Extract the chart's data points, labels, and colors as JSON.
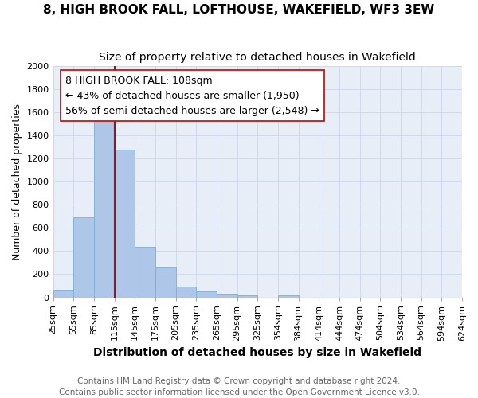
{
  "title": "8, HIGH BROOK FALL, LOFTHOUSE, WAKEFIELD, WF3 3EW",
  "subtitle": "Size of property relative to detached houses in Wakefield",
  "xlabel": "Distribution of detached houses by size in Wakefield",
  "ylabel": "Number of detached properties",
  "bar_values": [
    65,
    695,
    1635,
    1280,
    435,
    255,
    90,
    50,
    30,
    20,
    0,
    15,
    0,
    0,
    0,
    0,
    0,
    0,
    0,
    0
  ],
  "bar_labels": [
    "25sqm",
    "55sqm",
    "85sqm",
    "115sqm",
    "145sqm",
    "175sqm",
    "205sqm",
    "235sqm",
    "265sqm",
    "295sqm",
    "325sqm",
    "354sqm",
    "384sqm",
    "414sqm",
    "444sqm",
    "474sqm",
    "504sqm",
    "534sqm",
    "564sqm",
    "594sqm",
    "624sqm"
  ],
  "bar_color": "#aec6e8",
  "bar_edge_color": "#7bafd4",
  "vline_x": 2.5,
  "vline_color": "#cc0000",
  "annotation_text": "8 HIGH BROOK FALL: 108sqm\n← 43% of detached houses are smaller (1,950)\n56% of semi-detached houses are larger (2,548) →",
  "annotation_box_color": "#ffffff",
  "annotation_box_edge": "#cc0000",
  "ylim": [
    0,
    2000
  ],
  "yticks": [
    0,
    200,
    400,
    600,
    800,
    1000,
    1200,
    1400,
    1600,
    1800,
    2000
  ],
  "footer_line1": "Contains HM Land Registry data © Crown copyright and database right 2024.",
  "footer_line2": "Contains public sector information licensed under the Open Government Licence v3.0.",
  "background_color": "#ffffff",
  "grid_color": "#d0daea",
  "title_fontsize": 11,
  "subtitle_fontsize": 10,
  "xlabel_fontsize": 10,
  "ylabel_fontsize": 9,
  "tick_fontsize": 8,
  "annotation_fontsize": 9,
  "footer_fontsize": 7.5
}
